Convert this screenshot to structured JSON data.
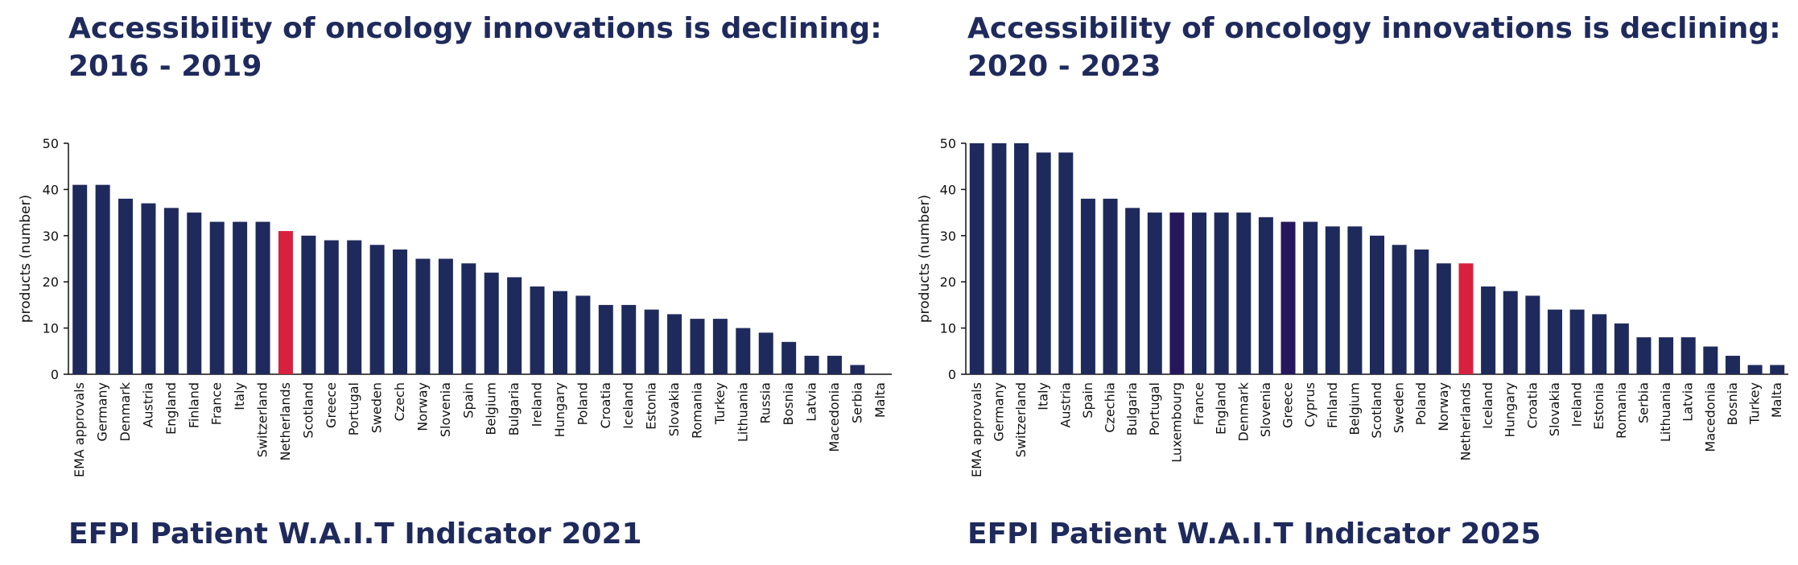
{
  "colors": {
    "bar": "#1f2a5c",
    "netherlands": "#d7213f",
    "dark_highlight": "#26175c",
    "title": "#1f2a5c",
    "axis": "#111111"
  },
  "chart_data": [
    {
      "type": "bar",
      "title_line1": "Accessibility of oncology innovations is declining:",
      "title_line2": "2016 - 2019",
      "footer": "EFPI Patient W.A.I.T Indicator 2021",
      "xlabel": "",
      "ylabel": "products (number)",
      "ylim": [
        0,
        50
      ],
      "yticks": [
        "0",
        "10",
        "20",
        "30",
        "40",
        "50"
      ],
      "categories": [
        "EMA approvals",
        "Germany",
        "Denmark",
        "Austria",
        "England",
        "Finland",
        "France",
        "Italy",
        "Switzerland",
        "Netherlands",
        "Scotland",
        "Greece",
        "Portugal",
        "Sweden",
        "Czech",
        "Norway",
        "Slovenia",
        "Spain",
        "Belgium",
        "Bulgaria",
        "Ireland",
        "Hungary",
        "Poland",
        "Croatia",
        "Iceland",
        "Estonia",
        "Slovakia",
        "Romania",
        "Turkey",
        "Lithuania",
        "Russia",
        "Bosnia",
        "Latvia",
        "Macedonia",
        "Serbia",
        "Malta"
      ],
      "values": [
        41,
        41,
        38,
        37,
        36,
        35,
        33,
        33,
        33,
        31,
        30,
        29,
        29,
        28,
        27,
        25,
        25,
        24,
        22,
        21,
        19,
        18,
        17,
        15,
        15,
        14,
        13,
        12,
        12,
        10,
        9,
        7,
        4,
        4,
        2,
        0
      ],
      "highlight": {
        "Netherlands": "netherlands"
      }
    },
    {
      "type": "bar",
      "title_line1": "Accessibility of oncology innovations is declining:",
      "title_line2": "2020 - 2023",
      "footer": "EFPI Patient W.A.I.T Indicator 2025",
      "xlabel": "",
      "ylabel": "products (number)",
      "ylim": [
        0,
        50
      ],
      "yticks": [
        "0",
        "10",
        "20",
        "30",
        "40",
        "50"
      ],
      "categories": [
        "EMA approvals",
        "Germany",
        "Switzerland",
        "Italy",
        "Austria",
        "Spain",
        "Czechia",
        "Bulgaria",
        "Portugal",
        "Luxembourg",
        "France",
        "England",
        "Denmark",
        "Slovenia",
        "Greece",
        "Cyprus",
        "Finland",
        "Belgium",
        "Scotland",
        "Sweden",
        "Poland",
        "Norway",
        "Netherlands",
        "Iceland",
        "Hungary",
        "Croatia",
        "Slovakia",
        "Ireland",
        "Estonia",
        "Romania",
        "Serbia",
        "Lithuania",
        "Latvia",
        "Macedonia",
        "Bosnia",
        "Turkey",
        "Malta"
      ],
      "values": [
        50,
        50,
        50,
        48,
        48,
        38,
        38,
        36,
        35,
        35,
        35,
        35,
        35,
        34,
        33,
        33,
        32,
        32,
        30,
        28,
        27,
        24,
        24,
        19,
        18,
        17,
        14,
        14,
        13,
        11,
        8,
        8,
        8,
        6,
        4,
        2,
        2
      ],
      "highlight": {
        "Netherlands": "netherlands",
        "Luxembourg": "dark_highlight",
        "Greece": "dark_highlight"
      }
    }
  ]
}
